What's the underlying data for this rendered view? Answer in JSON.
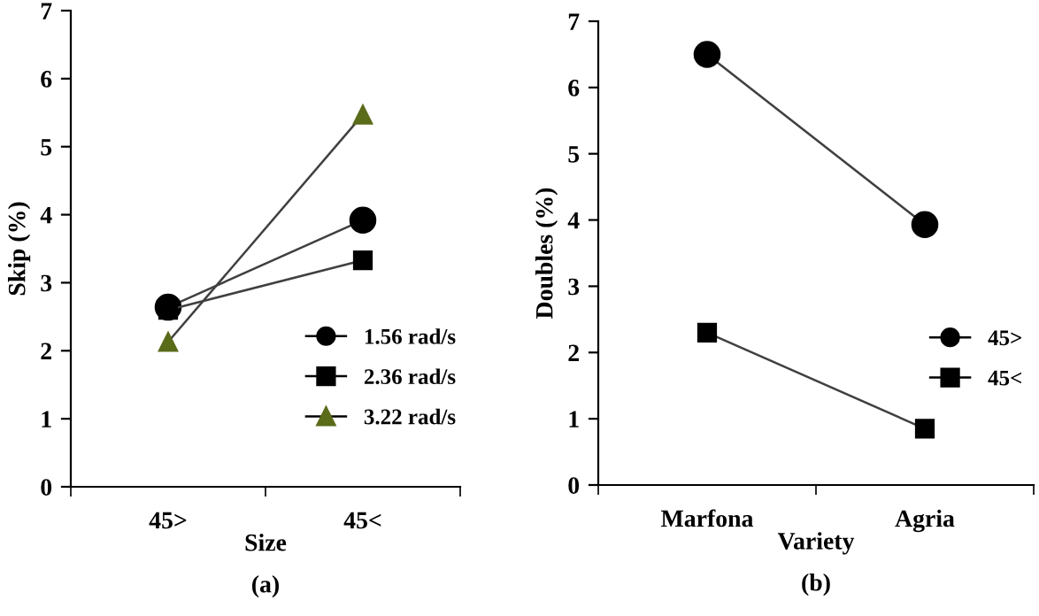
{
  "chart_data": [
    {
      "type": "line",
      "xlabel": "Size",
      "ylabel": "Skip (%)",
      "categories": [
        "45>",
        "45<"
      ],
      "ylim": [
        0,
        7
      ],
      "yticks": [
        0,
        1,
        2,
        3,
        4,
        5,
        6,
        7
      ],
      "grid": false,
      "legend": "bottom right",
      "annotations": [
        "(a)"
      ],
      "series": [
        {
          "name": "1.56 rad/s",
          "color": "#000000",
          "marker": "circle",
          "values": [
            2.64,
            3.92
          ]
        },
        {
          "name": "2.36 rad/s",
          "color": "#000000",
          "marker": "square",
          "values": [
            2.6,
            3.33
          ]
        },
        {
          "name": "3.22 rad/s",
          "color": "#5a6b1a",
          "marker": "triangle",
          "values": [
            2.13,
            5.47
          ]
        }
      ]
    },
    {
      "type": "line",
      "xlabel": "Variety",
      "ylabel": "Doubles (%)",
      "categories": [
        "Marfona",
        "Agria"
      ],
      "ylim": [
        0,
        7
      ],
      "yticks": [
        0,
        1,
        2,
        3,
        4,
        5,
        6,
        7
      ],
      "grid": false,
      "legend": "right",
      "annotations": [
        "(b)"
      ],
      "series": [
        {
          "name": "45>",
          "color": "#000000",
          "marker": "circle",
          "values": [
            6.5,
            3.93
          ]
        },
        {
          "name": "45<",
          "color": "#000000",
          "marker": "square",
          "values": [
            2.3,
            0.85
          ]
        }
      ]
    }
  ]
}
